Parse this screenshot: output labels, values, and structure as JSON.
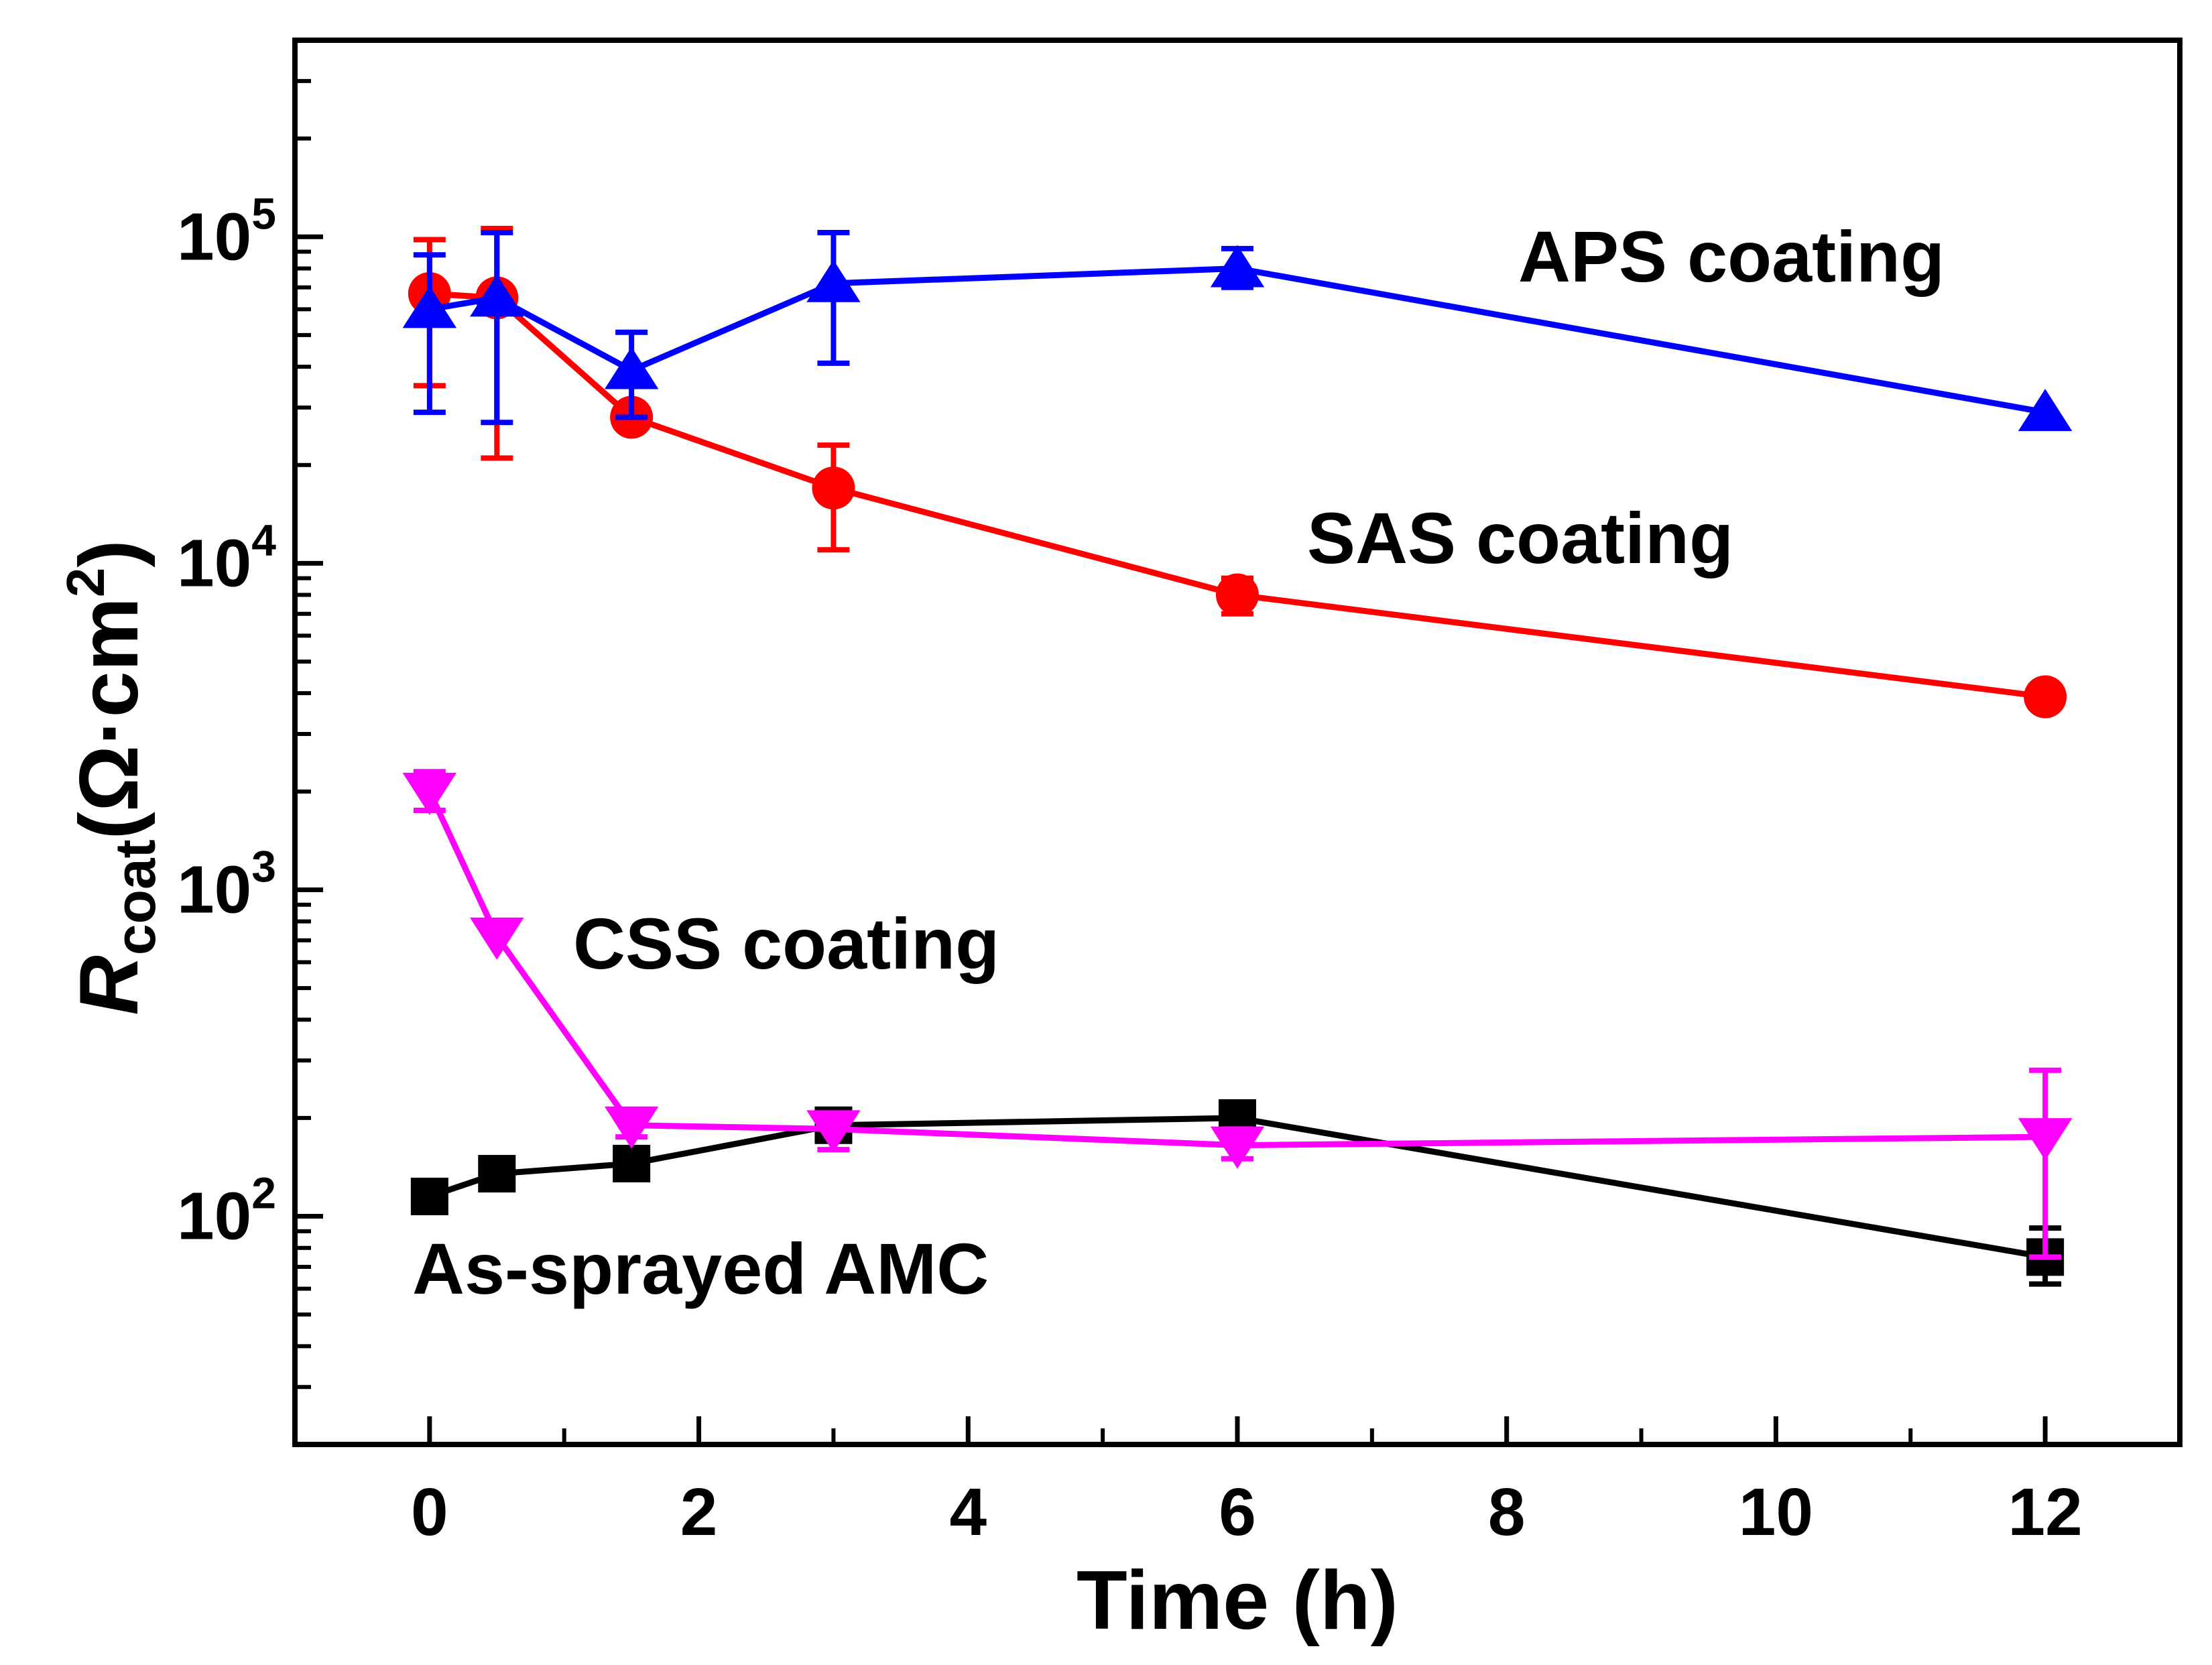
{
  "chart_data": {
    "type": "line",
    "title": "",
    "xlabel": "Time (h)",
    "ylabel": {
      "main": "R",
      "sub": "coat",
      "unit_open": "(Ω·cm",
      "unit_sup": "2",
      "unit_close": ")"
    },
    "x_scale": "linear",
    "y_scale": "log",
    "xlim": [
      -1,
      13
    ],
    "ylim": [
      20,
      400000
    ],
    "x_ticks": [
      0,
      2,
      4,
      6,
      8,
      10,
      12
    ],
    "x_tick_labels": [
      "0",
      "2",
      "4",
      "6",
      "8",
      "10",
      "12"
    ],
    "y_ticks": [
      100,
      1000,
      10000,
      100000
    ],
    "y_tick_labels": [
      {
        "base": "10",
        "exp": "2"
      },
      {
        "base": "10",
        "exp": "3"
      },
      {
        "base": "10",
        "exp": "4"
      },
      {
        "base": "10",
        "exp": "5"
      }
    ],
    "grid": false,
    "legend": "none (series labeled inline)",
    "series": [
      {
        "name": "As-sprayed AMC",
        "label": "As-sprayed AMC",
        "color": "#000000",
        "marker": "square",
        "x": [
          0,
          0.5,
          1.5,
          3,
          6,
          12
        ],
        "y": [
          115,
          135,
          145,
          190,
          200,
          75
        ],
        "err_low": [
          null,
          null,
          null,
          null,
          null,
          62
        ],
        "err_high": [
          null,
          null,
          null,
          null,
          null,
          92
        ]
      },
      {
        "name": "CSS coating",
        "label": "CSS coating",
        "color": "#ff00ff",
        "marker": "triangle-down",
        "x": [
          0,
          0.5,
          1.5,
          3,
          6,
          12
        ],
        "y": [
          2000,
          720,
          190,
          185,
          165,
          175
        ],
        "err_low": [
          1750,
          null,
          175,
          160,
          150,
          75
        ],
        "err_high": [
          2300,
          null,
          210,
          205,
          185,
          280
        ]
      },
      {
        "name": "SAS coating",
        "label": "SAS coating",
        "color": "#ff0000",
        "marker": "circle",
        "x": [
          0,
          0.5,
          1.5,
          3,
          6,
          12
        ],
        "y": [
          67000,
          65000,
          28000,
          17000,
          8000,
          3900
        ],
        "err_low": [
          35000,
          21000,
          26000,
          11000,
          7000,
          null
        ],
        "err_high": [
          98000,
          106000,
          30000,
          23000,
          9000,
          null
        ]
      },
      {
        "name": "APS coating",
        "label": "APS coating",
        "color": "#0000ff",
        "marker": "triangle-up",
        "x": [
          0,
          0.5,
          1.5,
          3,
          6,
          12
        ],
        "y": [
          60000,
          65000,
          39000,
          72000,
          80000,
          29000
        ],
        "err_low": [
          29000,
          27000,
          28000,
          41000,
          70000,
          null
        ],
        "err_high": [
          88000,
          103000,
          51000,
          103000,
          92000,
          null
        ]
      }
    ]
  }
}
